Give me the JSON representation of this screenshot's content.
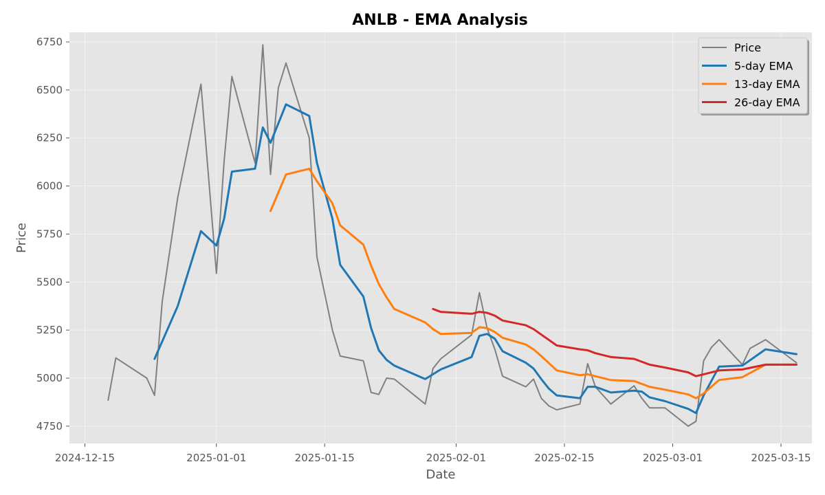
{
  "chart_data": {
    "type": "line",
    "title": "ANLB - EMA Analysis",
    "xlabel": "Date",
    "ylabel": "Price",
    "x_type": "date",
    "xlim": [
      "2024-12-13",
      "2025-03-19"
    ],
    "ylim": [
      4660,
      6800
    ],
    "x_ticks": [
      "2024-12-15",
      "2025-01-01",
      "2025-01-15",
      "2025-02-01",
      "2025-02-15",
      "2025-03-01",
      "2025-03-15"
    ],
    "y_ticks": [
      4750,
      5000,
      5250,
      5500,
      5750,
      6000,
      6250,
      6500,
      6750
    ],
    "grid": true,
    "legend_position": "top-right",
    "series": [
      {
        "name": "Price",
        "color": "#808080",
        "points": [
          [
            "2024-12-18",
            4885
          ],
          [
            "2024-12-19",
            5105
          ],
          [
            "2024-12-23",
            5000
          ],
          [
            "2024-12-24",
            4910
          ],
          [
            "2024-12-25",
            5400
          ],
          [
            "2024-12-27",
            5940
          ],
          [
            "2024-12-30",
            6530
          ],
          [
            "2025-01-01",
            5545
          ],
          [
            "2025-01-02",
            6130
          ],
          [
            "2025-01-03",
            6570
          ],
          [
            "2025-01-06",
            6120
          ],
          [
            "2025-01-07",
            6735
          ],
          [
            "2025-01-08",
            6060
          ],
          [
            "2025-01-09",
            6510
          ],
          [
            "2025-01-10",
            6640
          ],
          [
            "2025-01-13",
            6250
          ],
          [
            "2025-01-14",
            5630
          ],
          [
            "2025-01-16",
            5250
          ],
          [
            "2025-01-17",
            5115
          ],
          [
            "2025-01-20",
            5090
          ],
          [
            "2025-01-21",
            4925
          ],
          [
            "2025-01-22",
            4915
          ],
          [
            "2025-01-23",
            5000
          ],
          [
            "2025-01-24",
            4995
          ],
          [
            "2025-01-28",
            4865
          ],
          [
            "2025-01-29",
            5050
          ],
          [
            "2025-01-30",
            5100
          ],
          [
            "2025-02-03",
            5225
          ],
          [
            "2025-02-04",
            5445
          ],
          [
            "2025-02-05",
            5260
          ],
          [
            "2025-02-06",
            5150
          ],
          [
            "2025-02-07",
            5010
          ],
          [
            "2025-02-10",
            4955
          ],
          [
            "2025-02-11",
            4995
          ],
          [
            "2025-02-12",
            4895
          ],
          [
            "2025-02-13",
            4855
          ],
          [
            "2025-02-14",
            4835
          ],
          [
            "2025-02-17",
            4865
          ],
          [
            "2025-02-18",
            5075
          ],
          [
            "2025-02-19",
            4955
          ],
          [
            "2025-02-21",
            4865
          ],
          [
            "2025-02-24",
            4960
          ],
          [
            "2025-02-25",
            4895
          ],
          [
            "2025-02-26",
            4845
          ],
          [
            "2025-02-28",
            4845
          ],
          [
            "2025-03-03",
            4750
          ],
          [
            "2025-03-04",
            4775
          ],
          [
            "2025-03-05",
            5090
          ],
          [
            "2025-03-06",
            5160
          ],
          [
            "2025-03-07",
            5200
          ],
          [
            "2025-03-10",
            5070
          ],
          [
            "2025-03-11",
            5155
          ],
          [
            "2025-03-13",
            5200
          ],
          [
            "2025-03-17",
            5080
          ]
        ]
      },
      {
        "name": "5-day EMA",
        "color": "#1f77b4",
        "points": [
          [
            "2024-12-24",
            5100
          ],
          [
            "2024-12-27",
            5375
          ],
          [
            "2024-12-30",
            5765
          ],
          [
            "2025-01-01",
            5690
          ],
          [
            "2025-01-02",
            5830
          ],
          [
            "2025-01-03",
            6075
          ],
          [
            "2025-01-06",
            6090
          ],
          [
            "2025-01-07",
            6305
          ],
          [
            "2025-01-08",
            6225
          ],
          [
            "2025-01-10",
            6425
          ],
          [
            "2025-01-13",
            6365
          ],
          [
            "2025-01-14",
            6120
          ],
          [
            "2025-01-16",
            5830
          ],
          [
            "2025-01-17",
            5590
          ],
          [
            "2025-01-20",
            5425
          ],
          [
            "2025-01-21",
            5260
          ],
          [
            "2025-01-22",
            5145
          ],
          [
            "2025-01-23",
            5095
          ],
          [
            "2025-01-24",
            5065
          ],
          [
            "2025-01-28",
            4995
          ],
          [
            "2025-01-30",
            5045
          ],
          [
            "2025-02-03",
            5110
          ],
          [
            "2025-02-04",
            5220
          ],
          [
            "2025-02-05",
            5230
          ],
          [
            "2025-02-06",
            5205
          ],
          [
            "2025-02-07",
            5140
          ],
          [
            "2025-02-10",
            5080
          ],
          [
            "2025-02-11",
            5050
          ],
          [
            "2025-02-12",
            4995
          ],
          [
            "2025-02-13",
            4945
          ],
          [
            "2025-02-14",
            4910
          ],
          [
            "2025-02-17",
            4895
          ],
          [
            "2025-02-18",
            4955
          ],
          [
            "2025-02-19",
            4955
          ],
          [
            "2025-02-21",
            4925
          ],
          [
            "2025-02-24",
            4935
          ],
          [
            "2025-02-25",
            4930
          ],
          [
            "2025-02-26",
            4900
          ],
          [
            "2025-02-28",
            4880
          ],
          [
            "2025-03-03",
            4840
          ],
          [
            "2025-03-04",
            4818
          ],
          [
            "2025-03-05",
            4910
          ],
          [
            "2025-03-07",
            5060
          ],
          [
            "2025-03-10",
            5065
          ],
          [
            "2025-03-13",
            5150
          ],
          [
            "2025-03-17",
            5125
          ]
        ]
      },
      {
        "name": "13-day EMA",
        "color": "#ff7f0e",
        "points": [
          [
            "2025-01-08",
            5870
          ],
          [
            "2025-01-10",
            6060
          ],
          [
            "2025-01-13",
            6090
          ],
          [
            "2025-01-14",
            6025
          ],
          [
            "2025-01-16",
            5910
          ],
          [
            "2025-01-17",
            5795
          ],
          [
            "2025-01-20",
            5695
          ],
          [
            "2025-01-21",
            5585
          ],
          [
            "2025-01-22",
            5490
          ],
          [
            "2025-01-23",
            5420
          ],
          [
            "2025-01-24",
            5360
          ],
          [
            "2025-01-28",
            5290
          ],
          [
            "2025-01-29",
            5255
          ],
          [
            "2025-01-30",
            5230
          ],
          [
            "2025-02-03",
            5235
          ],
          [
            "2025-02-04",
            5265
          ],
          [
            "2025-02-05",
            5260
          ],
          [
            "2025-02-06",
            5240
          ],
          [
            "2025-02-07",
            5210
          ],
          [
            "2025-02-10",
            5175
          ],
          [
            "2025-02-11",
            5150
          ],
          [
            "2025-02-12",
            5115
          ],
          [
            "2025-02-14",
            5040
          ],
          [
            "2025-02-17",
            5015
          ],
          [
            "2025-02-18",
            5020
          ],
          [
            "2025-02-19",
            5010
          ],
          [
            "2025-02-21",
            4990
          ],
          [
            "2025-02-24",
            4985
          ],
          [
            "2025-02-26",
            4955
          ],
          [
            "2025-02-28",
            4940
          ],
          [
            "2025-03-03",
            4915
          ],
          [
            "2025-03-04",
            4895
          ],
          [
            "2025-03-05",
            4920
          ],
          [
            "2025-03-07",
            4990
          ],
          [
            "2025-03-10",
            5005
          ],
          [
            "2025-03-13",
            5070
          ],
          [
            "2025-03-17",
            5070
          ]
        ]
      },
      {
        "name": "26-day EMA",
        "color": "#d62728",
        "points": [
          [
            "2025-01-29",
            5360
          ],
          [
            "2025-01-30",
            5345
          ],
          [
            "2025-02-03",
            5335
          ],
          [
            "2025-02-04",
            5345
          ],
          [
            "2025-02-05",
            5340
          ],
          [
            "2025-02-06",
            5325
          ],
          [
            "2025-02-07",
            5300
          ],
          [
            "2025-02-10",
            5275
          ],
          [
            "2025-02-11",
            5255
          ],
          [
            "2025-02-14",
            5170
          ],
          [
            "2025-02-17",
            5150
          ],
          [
            "2025-02-18",
            5145
          ],
          [
            "2025-02-19",
            5130
          ],
          [
            "2025-02-21",
            5110
          ],
          [
            "2025-02-24",
            5100
          ],
          [
            "2025-02-26",
            5070
          ],
          [
            "2025-02-28",
            5055
          ],
          [
            "2025-03-03",
            5030
          ],
          [
            "2025-03-04",
            5010
          ],
          [
            "2025-03-05",
            5020
          ],
          [
            "2025-03-07",
            5040
          ],
          [
            "2025-03-10",
            5045
          ],
          [
            "2025-03-13",
            5070
          ],
          [
            "2025-03-17",
            5070
          ]
        ]
      }
    ]
  }
}
